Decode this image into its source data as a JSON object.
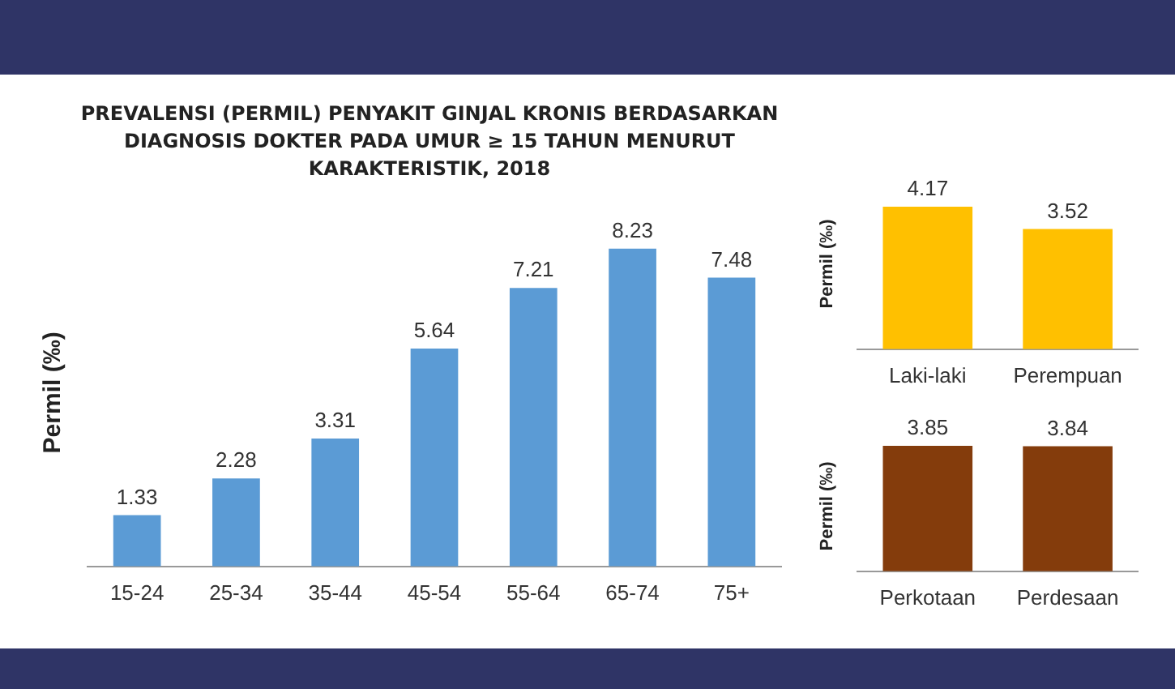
{
  "chart_data": [
    {
      "type": "bar",
      "title": "PREVALENSI (PERMIL) PENYAKIT GINJAL KRONIS BERDASARKAN DIAGNOSIS DOKTER PADA UMUR ≥ 15 TAHUN MENURUT KARAKTERISTIK, 2018",
      "ylabel": "Permil (‰)",
      "categories": [
        "15-24",
        "25-34",
        "35-44",
        "45-54",
        "55-64",
        "65-74",
        "75+"
      ],
      "values": [
        1.33,
        2.28,
        3.31,
        5.64,
        7.21,
        8.23,
        7.48
      ],
      "color": "#5b9bd5",
      "data_labels": true,
      "tick_labels": "x"
    },
    {
      "type": "bar",
      "ylabel": "Permil (‰)",
      "categories": [
        "Laki-laki",
        "Perempuan"
      ],
      "values": [
        4.17,
        3.52
      ],
      "color": "#ffc000",
      "data_labels": true,
      "tick_labels": "x"
    },
    {
      "type": "bar",
      "ylabel": "Permil (‰)",
      "categories": [
        "Perkotaan",
        "Perdesaan"
      ],
      "values": [
        3.85,
        3.84
      ],
      "color": "#843c0c",
      "data_labels": true,
      "tick_labels": "x"
    }
  ]
}
